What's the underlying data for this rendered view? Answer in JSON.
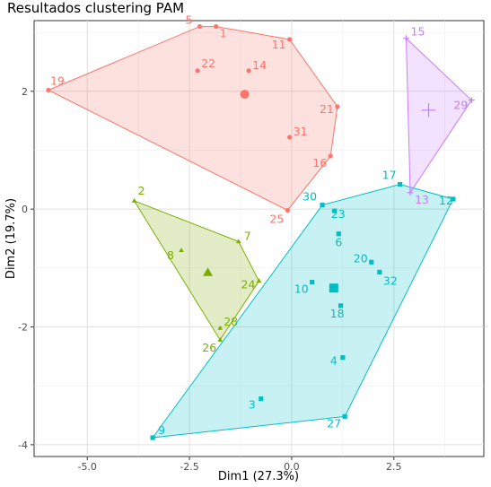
{
  "chart_data": {
    "type": "scatter",
    "title": "Resultados clustering PAM",
    "xlabel": "Dim1 (27.3%)",
    "ylabel": "Dim2 (19.7%)",
    "xlim": [
      -6.3,
      4.7
    ],
    "ylim": [
      -4.2,
      3.2
    ],
    "x_ticks": [
      -5.0,
      -2.5,
      0.0,
      2.5
    ],
    "x_tick_labels": [
      "-5.0",
      "-2.5",
      "0.0",
      "2.5"
    ],
    "y_ticks": [
      -4,
      -2,
      0,
      2
    ],
    "y_tick_labels": [
      "-4",
      "-2",
      "0",
      "2"
    ],
    "grid": true,
    "clusters": [
      {
        "color": "#F8766D",
        "marker": "circle",
        "center": [
          -1.15,
          1.95
        ],
        "points": [
          {
            "label": "1",
            "x": -1.85,
            "y": 3.1
          },
          {
            "label": "5",
            "x": -2.25,
            "y": 3.1
          },
          {
            "label": "11",
            "x": -0.05,
            "y": 2.88
          },
          {
            "label": "14",
            "x": -1.05,
            "y": 2.35
          },
          {
            "label": "16",
            "x": 0.95,
            "y": 0.9
          },
          {
            "label": "19",
            "x": -5.95,
            "y": 2.02
          },
          {
            "label": "21",
            "x": 1.12,
            "y": 1.74
          },
          {
            "label": "22",
            "x": -2.3,
            "y": 2.35
          },
          {
            "label": "25",
            "x": -0.1,
            "y": -0.02
          },
          {
            "label": "31",
            "x": -0.05,
            "y": 1.22
          }
        ],
        "hull": [
          "19",
          "5",
          "1",
          "11",
          "21",
          "16",
          "25"
        ]
      },
      {
        "color": "#7CAE00",
        "marker": "triangle",
        "center": [
          -2.05,
          -1.08
        ],
        "points": [
          {
            "label": "2",
            "x": -3.85,
            "y": 0.14
          },
          {
            "label": "7",
            "x": -1.3,
            "y": -0.55
          },
          {
            "label": "8",
            "x": -2.7,
            "y": -0.7
          },
          {
            "label": "24",
            "x": -0.8,
            "y": -1.22
          },
          {
            "label": "26",
            "x": -1.75,
            "y": -2.22
          },
          {
            "label": "28",
            "x": -1.75,
            "y": -2.02
          }
        ],
        "hull": [
          "2",
          "7",
          "24",
          "26"
        ]
      },
      {
        "color": "#00BFC4",
        "marker": "square",
        "center": [
          1.03,
          -1.34
        ],
        "points": [
          {
            "label": "3",
            "x": -0.75,
            "y": -3.22
          },
          {
            "label": "4",
            "x": 1.25,
            "y": -2.52
          },
          {
            "label": "6",
            "x": 1.15,
            "y": -0.42
          },
          {
            "label": "9",
            "x": -3.4,
            "y": -3.88
          },
          {
            "label": "10",
            "x": 0.5,
            "y": -1.24
          },
          {
            "label": "12",
            "x": 3.95,
            "y": 0.17
          },
          {
            "label": "17",
            "x": 2.65,
            "y": 0.42
          },
          {
            "label": "18",
            "x": 1.2,
            "y": -1.64
          },
          {
            "label": "20",
            "x": 1.95,
            "y": -0.9
          },
          {
            "label": "23",
            "x": 1.05,
            "y": -0.03
          },
          {
            "label": "27",
            "x": 1.3,
            "y": -3.52
          },
          {
            "label": "30",
            "x": 0.75,
            "y": 0.07
          },
          {
            "label": "32",
            "x": 2.15,
            "y": -1.07
          }
        ],
        "hull": [
          "9",
          "30",
          "17",
          "12",
          "27"
        ]
      },
      {
        "color": "#C77CFF",
        "marker": "cross",
        "center": [
          3.35,
          1.68
        ],
        "points": [
          {
            "label": "13",
            "x": 2.9,
            "y": 0.28
          },
          {
            "label": "15",
            "x": 2.8,
            "y": 2.9
          },
          {
            "label": "29",
            "x": 4.4,
            "y": 1.85
          }
        ],
        "hull": [
          "15",
          "29",
          "13"
        ]
      }
    ]
  }
}
